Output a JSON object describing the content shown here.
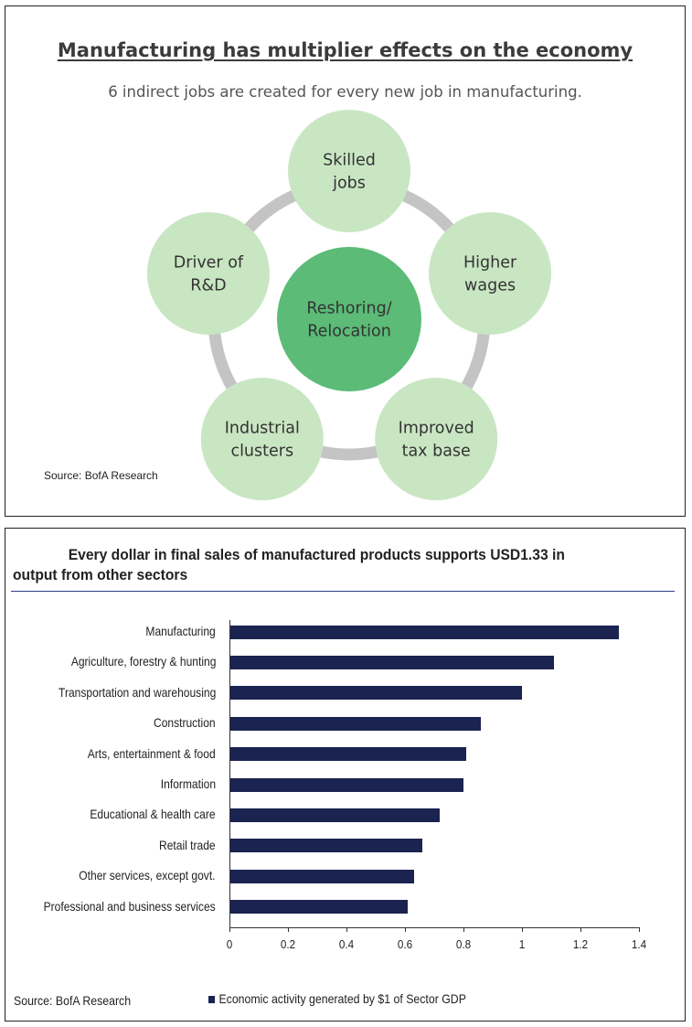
{
  "diagram": {
    "title": "Manufacturing has multiplier effects on the economy",
    "subtitle": "6 indirect jobs are created for every new job in manufacturing.",
    "center": [
      "Reshoring/",
      "Relocation"
    ],
    "nodes": [
      {
        "name": "skilled-jobs",
        "lines": [
          "Skilled",
          "jobs"
        ]
      },
      {
        "name": "higher-wages",
        "lines": [
          "Higher",
          "wages"
        ]
      },
      {
        "name": "improved-tax-base",
        "lines": [
          "Improved",
          "tax base"
        ]
      },
      {
        "name": "industrial-clusters",
        "lines": [
          "Industrial",
          "clusters"
        ]
      },
      {
        "name": "driver-of-rd",
        "lines": [
          "Driver of",
          "R&D"
        ]
      }
    ],
    "colors": {
      "node": "#c9e6c3",
      "center": "#5bbb77",
      "ring": "#c4c4c4",
      "text": "#333333"
    },
    "source": "Source: BofA Research"
  },
  "chart_data": {
    "type": "bar",
    "orientation": "horizontal",
    "title": "Every dollar in final sales of manufactured products supports USD1.33 in output from other sectors",
    "categories": [
      "Manufacturing",
      "Agriculture, forestry & hunting",
      "Transportation and warehousing",
      "Construction",
      "Arts, entertainment & food",
      "Information",
      "Educational & health care",
      "Retail trade",
      "Other services, except govt.",
      "Professional and business services"
    ],
    "series": [
      {
        "name": "Economic activity generated by $1 of Sector GDP",
        "values": [
          1.33,
          1.11,
          1.0,
          0.86,
          0.81,
          0.8,
          0.72,
          0.66,
          0.63,
          0.61
        ]
      }
    ],
    "xlim": [
      0,
      1.4
    ],
    "xticks": [
      "0",
      "0.2",
      "0.4",
      "0.6",
      "0.8",
      "1",
      "1.2",
      "1.4"
    ],
    "bar_color": "#1b2350",
    "legend_position": "bottom",
    "grid": false,
    "source": "Source: BofA Research"
  }
}
